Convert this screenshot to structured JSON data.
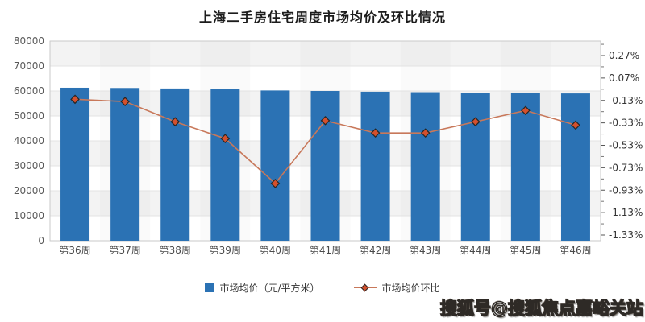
{
  "title": "上海二手房住宅周度市场均价及环比情况",
  "watermark": "搜狐号@搜狐焦点嘉峪关站",
  "legend": {
    "price_label": "市场均价（元/平方米）",
    "pct_label": "市场均价环比"
  },
  "colors": {
    "bar": "#2B72B4",
    "line": "#C8785A",
    "marker_fill": "#D4502D",
    "marker_stroke": "#262626",
    "band_gray": "#F3F3F3",
    "grid_line": "#E3E3E3",
    "axis_line": "#C9C9C9",
    "axis_text_left": "#595959",
    "axis_text_right": "#333333",
    "axis_text_x": "#4a4a4a"
  },
  "chart_data": {
    "type": "bar+line combo",
    "categories": [
      "第36周",
      "第37周",
      "第38周",
      "第39周",
      "第40周",
      "第41周",
      "第42周",
      "第43周",
      "第44周",
      "第45周",
      "第46周"
    ],
    "series": [
      {
        "name": "市场均价（元/平方米）",
        "type": "bar",
        "axis": "left",
        "values": [
          61300,
          61200,
          61000,
          60700,
          60200,
          60000,
          59700,
          59500,
          59300,
          59200,
          59000
        ]
      },
      {
        "name": "市场均价环比",
        "type": "line",
        "axis": "right",
        "unit": "%",
        "values": [
          -0.12,
          -0.14,
          -0.32,
          -0.47,
          -0.87,
          -0.31,
          -0.42,
          -0.42,
          -0.32,
          -0.22,
          -0.35
        ]
      }
    ],
    "y_axis_left": {
      "min": 0,
      "max": 80000,
      "interval": 10000,
      "tick_labels": [
        "80000",
        "70000",
        "60000",
        "50000",
        "40000",
        "30000",
        "20000",
        "10000",
        "0"
      ]
    },
    "y_axis_right": {
      "tick_labels": [
        "0.27%",
        "0.07%",
        "-0.13%",
        "-0.33%",
        "-0.53%",
        "-0.73%",
        "-0.93%",
        "-1.13%",
        "-1.33%"
      ],
      "tick_values": [
        0.27,
        0.07,
        -0.13,
        -0.33,
        -0.53,
        -0.73,
        -0.93,
        -1.13,
        -1.33
      ],
      "interval": 0.2
    },
    "grid": "horizontal zebra bands with faint column shading",
    "legend_position": "bottom-center"
  }
}
